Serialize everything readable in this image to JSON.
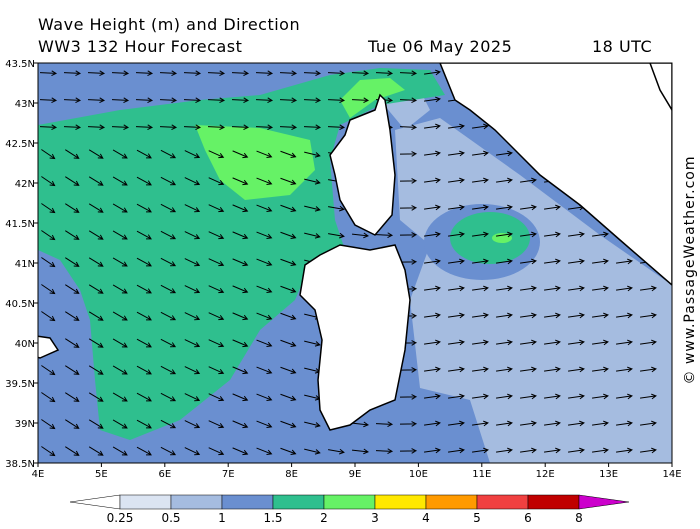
{
  "header": {
    "title": "Wave Height (m) and Direction",
    "model": "WW3 132 Hour Forecast",
    "date": "Tue 06 May 2025",
    "time": "18 UTC"
  },
  "axes": {
    "lat_labels": [
      "43.5N",
      "43N",
      "42.5N",
      "42N",
      "41.5N",
      "41N",
      "40.5N",
      "40N",
      "39.5N",
      "39N",
      "38.5N"
    ],
    "lon_labels": [
      "4E",
      "5E",
      "6E",
      "7E",
      "8E",
      "9E",
      "10E",
      "11E",
      "12E",
      "13E",
      "14E"
    ]
  },
  "legend": {
    "labels": [
      "0.25",
      "0.5",
      "1",
      "1.5",
      "2",
      "3",
      "4",
      "5",
      "6",
      "8"
    ],
    "colors": [
      "#ffffff",
      "#dbe4f2",
      "#a5bce0",
      "#6a8fd0",
      "#2fbf8e",
      "#66f266",
      "#ffe800",
      "#ff9a00",
      "#f04040",
      "#c00000",
      "#cc00cc"
    ]
  },
  "watermark": "© www.PassageWeather.com"
}
